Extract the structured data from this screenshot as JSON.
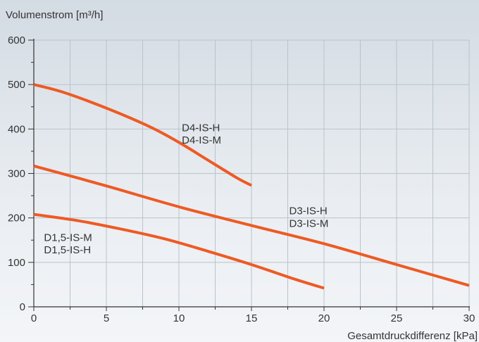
{
  "chart_data": {
    "type": "line",
    "ylabel": "Volumenstrom [m³/h]",
    "xlabel": "Gesamtdruckdifferenz [kPa]",
    "xlim": [
      0,
      30
    ],
    "ylim": [
      0,
      600
    ],
    "x_ticks": [
      0,
      5,
      10,
      15,
      20,
      25,
      30
    ],
    "y_ticks": [
      0,
      100,
      200,
      300,
      400,
      500,
      600
    ],
    "grid": true,
    "line_color": "#ee5a24",
    "series": [
      {
        "labels": [
          "D4-IS-H",
          "D4-IS-M"
        ],
        "x": [
          0,
          2,
          5,
          8,
          10,
          12,
          14,
          15
        ],
        "y": [
          500,
          483,
          447,
          405,
          370,
          330,
          290,
          273
        ]
      },
      {
        "labels": [
          "D3-IS-H",
          "D3-IS-M"
        ],
        "x": [
          0,
          5,
          10,
          15,
          20,
          25,
          30
        ],
        "y": [
          317,
          272,
          225,
          183,
          142,
          95,
          48
        ]
      },
      {
        "labels": [
          "D1,5-IS-M",
          "D1,5-IS-H"
        ],
        "x": [
          0,
          3,
          6,
          9,
          12,
          15,
          18,
          20
        ],
        "y": [
          208,
          194,
          175,
          153,
          125,
          95,
          62,
          42
        ]
      }
    ]
  }
}
